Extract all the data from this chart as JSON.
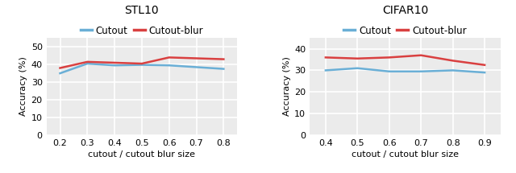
{
  "stl10": {
    "title": "STL10",
    "xlabel": "cutout / cutout blur size",
    "ylabel": "Accuracy (%)",
    "x": [
      0.2,
      0.3,
      0.4,
      0.5,
      0.6,
      0.7,
      0.8
    ],
    "cutout": [
      35.0,
      40.5,
      39.5,
      39.8,
      39.5,
      38.5,
      37.5
    ],
    "cutout_blur": [
      38.0,
      41.5,
      41.0,
      40.5,
      44.0,
      43.5,
      43.0
    ],
    "ylim": [
      0,
      55
    ],
    "yticks": [
      0,
      10,
      20,
      30,
      40,
      50
    ],
    "xlim": [
      0.15,
      0.85
    ],
    "xticks": [
      0.2,
      0.3,
      0.4,
      0.5,
      0.6,
      0.7,
      0.8
    ]
  },
  "cifar10": {
    "title": "CIFAR10",
    "xlabel": "cutout / cutout blur size",
    "ylabel": "Accuracy (%)",
    "x": [
      0.4,
      0.5,
      0.6,
      0.7,
      0.8,
      0.9
    ],
    "cutout": [
      30.0,
      31.0,
      29.5,
      29.5,
      30.0,
      29.0
    ],
    "cutout_blur": [
      36.0,
      35.5,
      36.0,
      37.0,
      34.5,
      32.5
    ],
    "ylim": [
      0,
      45
    ],
    "yticks": [
      0,
      10,
      20,
      30,
      40
    ],
    "xlim": [
      0.35,
      0.95
    ],
    "xticks": [
      0.4,
      0.5,
      0.6,
      0.7,
      0.8,
      0.9
    ]
  },
  "cutout_color": "#6aafd6",
  "cutout_blur_color": "#d94040",
  "label_cutout": "Cutout",
  "label_cutout_blur": "Cutout-blur",
  "line_width": 1.8,
  "bg_color": "#ebebeb",
  "grid_color": "white",
  "title_fontsize": 10,
  "label_fontsize": 8,
  "tick_fontsize": 8,
  "legend_fontsize": 8.5
}
